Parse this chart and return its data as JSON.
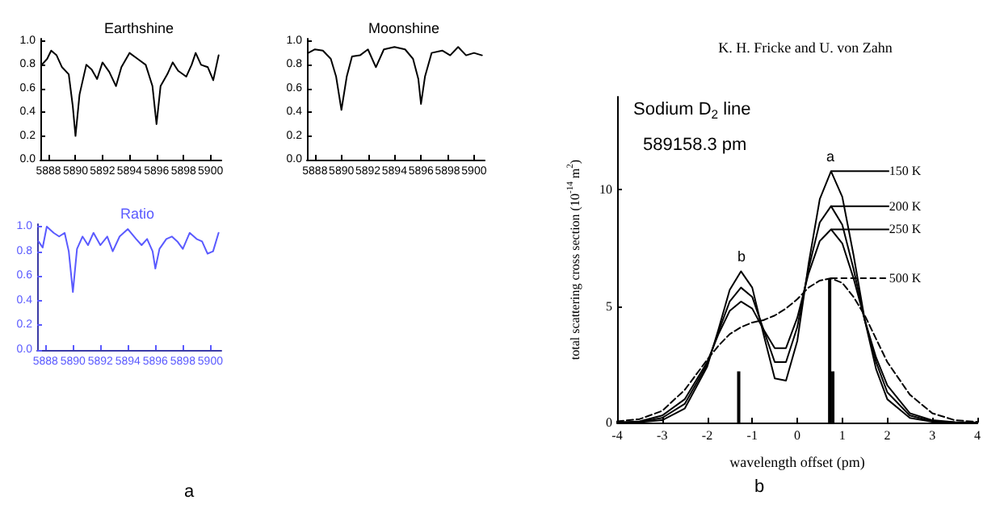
{
  "chart_data": [
    {
      "type": "line",
      "title": "Earthshine",
      "color": "#000000",
      "marker": "none",
      "grid": false,
      "legend": false,
      "x": [
        5887.5,
        5887.9,
        5888.2,
        5888.6,
        5889.0,
        5889.5,
        5889.8,
        5890.0,
        5890.3,
        5890.8,
        5891.2,
        5891.6,
        5892.0,
        5892.5,
        5893.0,
        5893.4,
        5894.0,
        5894.6,
        5895.2,
        5895.7,
        5896.0,
        5896.3,
        5896.8,
        5897.2,
        5897.6,
        5898.2,
        5898.6,
        5898.9,
        5899.3,
        5899.8,
        5900.2,
        5900.6
      ],
      "values": [
        0.8,
        0.85,
        0.92,
        0.88,
        0.78,
        0.72,
        0.45,
        0.2,
        0.55,
        0.8,
        0.76,
        0.68,
        0.82,
        0.74,
        0.62,
        0.78,
        0.9,
        0.85,
        0.8,
        0.62,
        0.3,
        0.62,
        0.72,
        0.82,
        0.75,
        0.7,
        0.8,
        0.9,
        0.8,
        0.78,
        0.67,
        0.88
      ],
      "xlim": [
        5887.4,
        5900.8
      ],
      "xticks": [
        5888,
        5890,
        5892,
        5894,
        5896,
        5898,
        5900
      ],
      "ylim": [
        0,
        1.02
      ],
      "yticks": [
        {
          "value": 0,
          "label": "0.0"
        },
        {
          "value": 0.2,
          "label": "0.2"
        },
        {
          "value": 0.4,
          "label": "0.4"
        },
        {
          "value": 0.6,
          "label": "0.6"
        },
        {
          "value": 0.8,
          "label": "0.8"
        },
        {
          "value": 1,
          "label": "1.0"
        }
      ]
    },
    {
      "type": "line",
      "title": "Moonshine",
      "color": "#000000",
      "marker": "none",
      "grid": false,
      "legend": false,
      "x": [
        5887.5,
        5888.0,
        5888.6,
        5889.2,
        5889.6,
        5890.0,
        5890.4,
        5890.8,
        5891.4,
        5892.0,
        5892.6,
        5893.2,
        5894.0,
        5894.8,
        5895.4,
        5895.8,
        5896.0,
        5896.3,
        5896.8,
        5897.6,
        5898.2,
        5898.8,
        5899.4,
        5900.0,
        5900.6
      ],
      "values": [
        0.9,
        0.93,
        0.92,
        0.85,
        0.7,
        0.42,
        0.7,
        0.87,
        0.88,
        0.93,
        0.78,
        0.93,
        0.95,
        0.93,
        0.85,
        0.68,
        0.47,
        0.7,
        0.9,
        0.92,
        0.88,
        0.95,
        0.88,
        0.9,
        0.88
      ],
      "xlim": [
        5887.4,
        5900.8
      ],
      "xticks": [
        5888,
        5890,
        5892,
        5894,
        5896,
        5898,
        5900
      ],
      "ylim": [
        0,
        1.02
      ],
      "yticks": [
        {
          "value": 0,
          "label": "0.0"
        },
        {
          "value": 0.2,
          "label": "0.2"
        },
        {
          "value": 0.4,
          "label": "0.4"
        },
        {
          "value": 0.6,
          "label": "0.6"
        },
        {
          "value": 0.8,
          "label": "0.8"
        },
        {
          "value": 1,
          "label": "1.0"
        }
      ]
    },
    {
      "type": "line",
      "title": "Ratio",
      "color": "#5a5aff",
      "marker": "none",
      "grid": false,
      "legend": false,
      "annotations": [
        "a"
      ],
      "x": [
        5887.5,
        5887.8,
        5888.1,
        5888.6,
        5889.0,
        5889.4,
        5889.7,
        5890.0,
        5890.3,
        5890.7,
        5891.1,
        5891.5,
        5892.0,
        5892.5,
        5892.9,
        5893.4,
        5894.0,
        5894.6,
        5895.0,
        5895.4,
        5895.8,
        5896.0,
        5896.3,
        5896.8,
        5897.2,
        5897.6,
        5898.0,
        5898.5,
        5899.0,
        5899.4,
        5899.8,
        5900.2,
        5900.6
      ],
      "values": [
        0.88,
        0.83,
        1.0,
        0.95,
        0.92,
        0.95,
        0.8,
        0.47,
        0.82,
        0.92,
        0.85,
        0.95,
        0.85,
        0.92,
        0.8,
        0.92,
        0.98,
        0.9,
        0.85,
        0.9,
        0.8,
        0.66,
        0.82,
        0.9,
        0.92,
        0.88,
        0.82,
        0.95,
        0.9,
        0.88,
        0.78,
        0.8,
        0.95
      ],
      "xlim": [
        5887.4,
        5900.8
      ],
      "xticks": [
        5888,
        5890,
        5892,
        5894,
        5896,
        5898,
        5900
      ],
      "ylim": [
        0,
        1.02
      ],
      "yticks": [
        {
          "value": 0,
          "label": "0.0"
        },
        {
          "value": 0.2,
          "label": "0.2"
        },
        {
          "value": 0.4,
          "label": "0.4"
        },
        {
          "value": 0.6,
          "label": "0.6"
        },
        {
          "value": 0.8,
          "label": "0.8"
        },
        {
          "value": 1,
          "label": "1.0"
        }
      ]
    },
    {
      "type": "line",
      "title": "K. H. Fricke and U. von Zahn",
      "xlabel": "wavelength offset (pm)",
      "ylabel": "total scattering cross section (10$^{-14}$ m$^{2}$)",
      "marker": "none",
      "grid": false,
      "legend": "top right",
      "annotations": [
        "Sodium D$_{2}$ line",
        "589158.3 pm",
        "a",
        "b",
        "b"
      ],
      "x": [
        -4,
        -3.5,
        -3,
        -2.5,
        -2,
        -1.75,
        -1.5,
        -1.25,
        -1,
        -0.75,
        -0.5,
        -0.25,
        0,
        0.25,
        0.5,
        0.75,
        1,
        1.25,
        1.5,
        1.75,
        2,
        2.5,
        3,
        3.5,
        4
      ],
      "series": [
        {
          "name": "150 K",
          "color": "#000000",
          "line_style": "solid",
          "values": [
            0,
            0.02,
            0.1,
            0.6,
            2.4,
            4.0,
            5.7,
            6.5,
            5.8,
            3.8,
            1.9,
            1.8,
            3.5,
            6.8,
            9.6,
            10.8,
            9.7,
            7.2,
            4.4,
            2.3,
            1.0,
            0.2,
            0.03,
            0,
            0
          ]
        },
        {
          "name": "200 K",
          "color": "#000000",
          "line_style": "solid",
          "values": [
            0,
            0.03,
            0.2,
            0.8,
            2.5,
            3.9,
            5.2,
            5.8,
            5.4,
            4.0,
            2.6,
            2.6,
            4.1,
            6.6,
            8.6,
            9.3,
            8.5,
            6.6,
            4.4,
            2.6,
            1.3,
            0.3,
            0.05,
            0.01,
            0
          ]
        },
        {
          "name": "250 K",
          "color": "#000000",
          "line_style": "solid",
          "values": [
            0,
            0.05,
            0.3,
            1.0,
            2.6,
            3.8,
            4.8,
            5.2,
            4.9,
            4.0,
            3.2,
            3.2,
            4.5,
            6.4,
            7.8,
            8.3,
            7.7,
            6.2,
            4.4,
            2.8,
            1.6,
            0.4,
            0.1,
            0.02,
            0
          ]
        },
        {
          "name": "500 K",
          "color": "#000000",
          "line_style": "dashed",
          "values": [
            0.05,
            0.15,
            0.5,
            1.4,
            2.7,
            3.3,
            3.8,
            4.1,
            4.3,
            4.4,
            4.6,
            4.9,
            5.3,
            5.8,
            6.1,
            6.2,
            6.0,
            5.4,
            4.6,
            3.6,
            2.6,
            1.2,
            0.4,
            0.1,
            0.03
          ]
        },
        {
          "type": "bar",
          "color": "#000000",
          "x": [
            -1.3,
            0.72,
            0.79
          ],
          "values": [
            2.2,
            6.2,
            2.2
          ]
        }
      ],
      "xlim": [
        -4,
        4
      ],
      "xticks": [
        -4,
        -3,
        -2,
        -1,
        0,
        1,
        2,
        3,
        4
      ],
      "ylim": [
        0,
        14
      ],
      "yticks": [
        0,
        5,
        10
      ]
    }
  ]
}
